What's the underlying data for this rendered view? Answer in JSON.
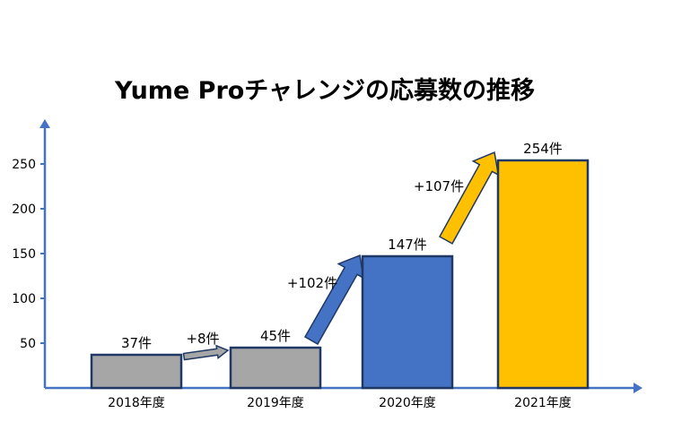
{
  "chart_data": {
    "type": "bar",
    "title": "Yume Proチャレンジの応募数の推移",
    "xlabel": "",
    "ylabel": "",
    "categories": [
      "2018年度",
      "2019年度",
      "2020年度",
      "2021年度"
    ],
    "values": [
      37,
      45,
      147,
      254
    ],
    "data_labels": [
      "37件",
      "45件",
      "147件",
      "254件"
    ],
    "bar_colors": [
      "#a6a6a6",
      "#a6a6a6",
      "#4472c4",
      "#ffc000"
    ],
    "bar_border_color": "#1f3864",
    "axis_color": "#4472c4",
    "y_ticks": [
      50,
      100,
      150,
      200,
      250
    ],
    "ylim": [
      0,
      280
    ],
    "grid": false,
    "legend": "none",
    "increases": [
      {
        "from": "2018年度",
        "to": "2019年度",
        "label": "+8件",
        "color": "#a6a6a6"
      },
      {
        "from": "2019年度",
        "to": "2020年度",
        "label": "+102件",
        "color": "#4472c4"
      },
      {
        "from": "2020年度",
        "to": "2021年度",
        "label": "+107件",
        "color": "#ffc000"
      }
    ]
  }
}
